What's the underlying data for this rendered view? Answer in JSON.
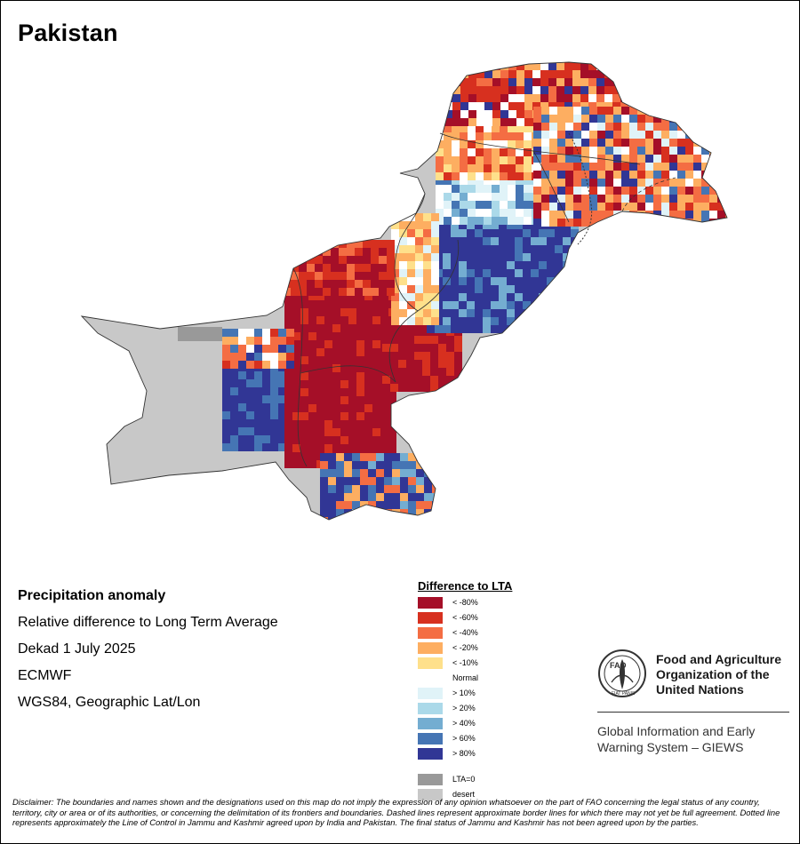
{
  "map": {
    "title": "Pakistan",
    "subtitle": "Precipitation anomaly",
    "lines": [
      "Relative difference to Long Term Average",
      "Dekad 1 July 2025",
      "ECMWF",
      "WGS84, Geographic Lat/Lon"
    ]
  },
  "legend": {
    "title": "Difference to LTA",
    "items": [
      {
        "label": "< -80%",
        "color": "#a50f28"
      },
      {
        "label": "< -60%",
        "color": "#d7301f"
      },
      {
        "label": "< -40%",
        "color": "#f46d43"
      },
      {
        "label": "< -20%",
        "color": "#fdae61"
      },
      {
        "label": "< -10%",
        "color": "#fee08b"
      },
      {
        "label": "Normal",
        "color": "#ffffff"
      },
      {
        "label": "> 10%",
        "color": "#e0f3f8"
      },
      {
        "label": "> 20%",
        "color": "#abd9e9"
      },
      {
        "label": "> 40%",
        "color": "#74add1"
      },
      {
        "label": "> 60%",
        "color": "#4575b4"
      },
      {
        "label": "> 80%",
        "color": "#313695"
      }
    ],
    "extra": [
      {
        "label": "LTA=0",
        "color": "#999999"
      },
      {
        "label": "desert",
        "color": "#c8c8c8"
      }
    ]
  },
  "fao": {
    "org_lines": [
      "Food and Agriculture",
      "Organization of the",
      "United Nations"
    ],
    "system_lines": [
      "Global Information and Early",
      "Warning System – GIEWS"
    ],
    "seal_text": "FIAT PANIS",
    "seal_letters": "FAO"
  },
  "disclaimer": "Disclaimer: The boundaries and names shown and the designations used on this map do not imply the expression of any opinion whatsoever on the part of FAO concerning the legal status of any country, territory, city or area or of its authorities, or concerning the delimitation of its frontiers and boundaries. Dashed lines represent approximate border lines for which there may not yet be full agreement. Dotted line represents approximately the Line of Control in Jammu and Kashmir agreed upon by India and Pakistan. The final status of Jammu and Kashmir has not been agreed upon by the parties."
}
